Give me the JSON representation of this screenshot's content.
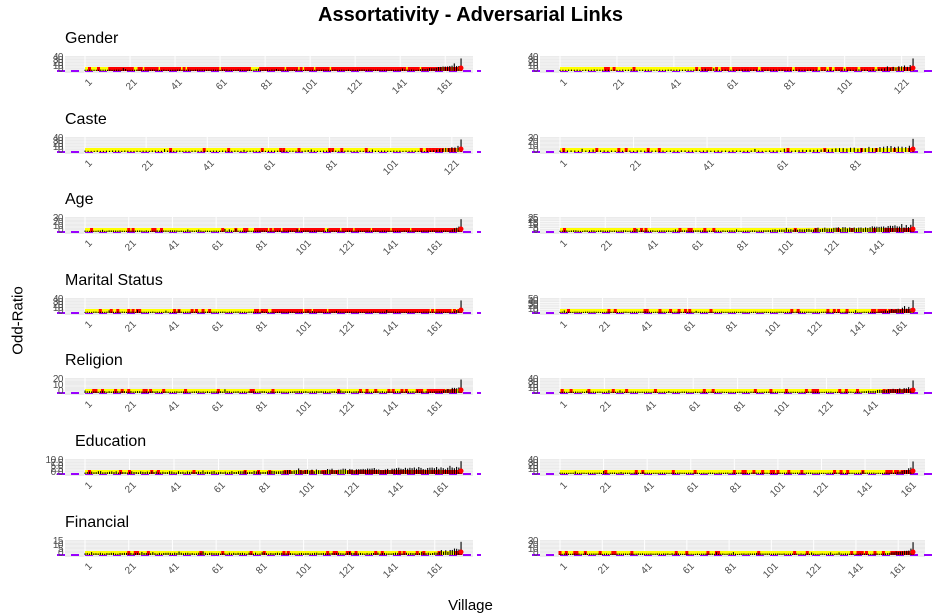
{
  "figure": {
    "title": "Assortativity - Adversarial Links",
    "ylabel": "Odd-Ratio",
    "xlabel": "Village"
  },
  "colors": {
    "panel_bg": "#ebebeb",
    "grid": "#ffffff",
    "bar": "#000000",
    "ci_band": "#ffff00",
    "point": "#ff0000",
    "reference_line": "#9900ff",
    "tick_text": "#4d4d4d"
  },
  "chart_data": [
    {
      "type": "bar",
      "panel": "left",
      "title": "Gender",
      "n": 168,
      "x_ticks": [
        "1",
        "21",
        "41",
        "61",
        "81",
        "101",
        "121",
        "141",
        "161"
      ],
      "y_ticks": [
        "0",
        "10",
        "20",
        "30",
        "40"
      ],
      "ylim": [
        0,
        45
      ],
      "red_start_frac": 0.06,
      "peak": 40,
      "tail_frac": 0.12
    },
    {
      "type": "bar",
      "panel": "right",
      "title": "",
      "n": 125,
      "x_ticks": [
        "1",
        "21",
        "41",
        "61",
        "81",
        "101",
        "121"
      ],
      "y_ticks": [
        "0",
        "10",
        "20",
        "30",
        "40"
      ],
      "ylim": [
        0,
        45
      ],
      "red_start_frac": 0.4,
      "peak": 40,
      "tail_frac": 0.12
    },
    {
      "type": "bar",
      "panel": "left",
      "title": "Caste",
      "n": 124,
      "x_ticks": [
        "1",
        "21",
        "41",
        "61",
        "81",
        "101",
        "121"
      ],
      "y_ticks": [
        "0",
        "10",
        "20",
        "30",
        "40"
      ],
      "ylim": [
        0,
        45
      ],
      "red_start_frac": 0.9,
      "peak": 40,
      "tail_frac": 0.08
    },
    {
      "type": "bar",
      "panel": "right",
      "title": "",
      "n": 97,
      "x_ticks": [
        "1",
        "21",
        "41",
        "61",
        "81"
      ],
      "y_ticks": [
        "0",
        "10",
        "20",
        "30"
      ],
      "ylim": [
        0,
        32
      ],
      "red_start_frac": 0.98,
      "peak": 30,
      "tail_frac": 0.35
    },
    {
      "type": "bar",
      "panel": "left",
      "title": "Age",
      "n": 173,
      "x_ticks": [
        "1",
        "21",
        "41",
        "61",
        "81",
        "101",
        "121",
        "141",
        "161"
      ],
      "y_ticks": [
        "0",
        "10",
        "20",
        "30"
      ],
      "ylim": [
        0,
        33
      ],
      "red_start_frac": 0.45,
      "peak": 30,
      "tail_frac": 0.03
    },
    {
      "type": "bar",
      "panel": "right",
      "title": "",
      "n": 157,
      "x_ticks": [
        "1",
        "21",
        "41",
        "61",
        "81",
        "101",
        "121",
        "141"
      ],
      "y_ticks": [
        "0",
        "5",
        "10",
        "15",
        "20",
        "25"
      ],
      "ylim": [
        0,
        27
      ],
      "red_start_frac": 0.92,
      "peak": 25,
      "tail_frac": 0.45
    },
    {
      "type": "bar",
      "panel": "left",
      "title": "Marital Status",
      "n": 173,
      "x_ticks": [
        "1",
        "21",
        "41",
        "61",
        "81",
        "101",
        "121",
        "141",
        "161"
      ],
      "y_ticks": [
        "0",
        "10",
        "20",
        "30",
        "40"
      ],
      "ylim": [
        0,
        45
      ],
      "red_start_frac": 0.45,
      "peak": 40,
      "tail_frac": 0.02
    },
    {
      "type": "bar",
      "panel": "right",
      "title": "",
      "n": 167,
      "x_ticks": [
        "1",
        "21",
        "41",
        "61",
        "81",
        "101",
        "121",
        "141",
        "161"
      ],
      "y_ticks": [
        "0",
        "10",
        "20",
        "30",
        "40",
        "50"
      ],
      "ylim": [
        0,
        55
      ],
      "red_start_frac": 0.9,
      "peak": 50,
      "tail_frac": 0.1
    },
    {
      "type": "bar",
      "panel": "left",
      "title": "Religion",
      "n": 173,
      "x_ticks": [
        "1",
        "21",
        "41",
        "61",
        "81",
        "101",
        "121",
        "141",
        "161"
      ],
      "y_ticks": [
        "0",
        "10",
        "20"
      ],
      "ylim": [
        0,
        23
      ],
      "red_start_frac": 0.88,
      "peak": 22,
      "tail_frac": 0.06
    },
    {
      "type": "bar",
      "panel": "right",
      "title": "",
      "n": 160,
      "x_ticks": [
        "1",
        "21",
        "41",
        "61",
        "81",
        "101",
        "121",
        "141"
      ],
      "y_ticks": [
        "0",
        "10",
        "20",
        "30",
        "40"
      ],
      "ylim": [
        0,
        45
      ],
      "red_start_frac": 0.93,
      "peak": 40,
      "tail_frac": 0.15
    },
    {
      "type": "bar",
      "panel": "left",
      "title": "Education",
      "n": 170,
      "x_ticks": [
        "1",
        "21",
        "41",
        "61",
        "81",
        "101",
        "121",
        "141",
        "161"
      ],
      "y_ticks": [
        "0.0",
        "2.5",
        "5.0",
        "7.5",
        "10.0"
      ],
      "ylim": [
        0,
        11
      ],
      "red_start_frac": 0.7,
      "peak": 10,
      "tail_frac": 0.6
    },
    {
      "type": "bar",
      "panel": "right",
      "title": "",
      "n": 163,
      "x_ticks": [
        "1",
        "21",
        "41",
        "61",
        "81",
        "101",
        "121",
        "141",
        "161"
      ],
      "y_ticks": [
        "0",
        "10",
        "20",
        "30",
        "40"
      ],
      "ylim": [
        0,
        45
      ],
      "red_start_frac": 0.92,
      "peak": 40,
      "tail_frac": 0.05
    },
    {
      "type": "bar",
      "panel": "left",
      "title": "Financial",
      "n": 173,
      "x_ticks": [
        "1",
        "21",
        "41",
        "61",
        "81",
        "101",
        "121",
        "141",
        "161"
      ],
      "y_ticks": [
        "0",
        "5",
        "10",
        "15"
      ],
      "ylim": [
        0,
        16
      ],
      "red_start_frac": 0.99,
      "peak": 15,
      "tail_frac": 0.08
    },
    {
      "type": "bar",
      "panel": "right",
      "title": "",
      "n": 168,
      "x_ticks": [
        "1",
        "21",
        "41",
        "61",
        "81",
        "101",
        "121",
        "141",
        "161"
      ],
      "y_ticks": [
        "0",
        "10",
        "20",
        "30"
      ],
      "ylim": [
        0,
        33
      ],
      "red_start_frac": 0.94,
      "peak": 30,
      "tail_frac": 0.08
    }
  ]
}
